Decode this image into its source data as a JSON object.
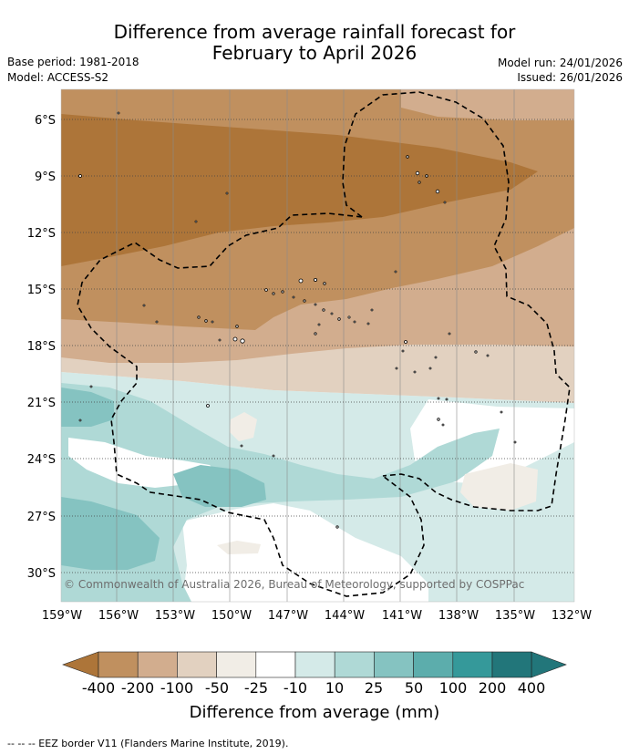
{
  "title": {
    "line1": "Difference from average rainfall forecast for",
    "line2": "February to April 2026"
  },
  "meta": {
    "base_period": "Base period: 1981-2018",
    "model": "Model: ACCESS-S2",
    "model_run": "Model run: 24/01/2026",
    "issued": "Issued: 26/01/2026"
  },
  "map": {
    "lat_labels": [
      "6°S",
      "9°S",
      "12°S",
      "15°S",
      "18°S",
      "21°S",
      "24°S",
      "27°S",
      "30°S"
    ],
    "lon_labels": [
      "159°W",
      "156°W",
      "153°W",
      "150°W",
      "147°W",
      "144°W",
      "141°W",
      "138°W",
      "135°W",
      "132°W"
    ],
    "copyright": "© Commonwealth of Australia 2026, Bureau of Meteorology, supported by COSPPac"
  },
  "colorbar": {
    "labels": [
      "-400",
      "-200",
      "-100",
      "-50",
      "-25",
      "-10",
      "10",
      "25",
      "50",
      "100",
      "200",
      "400"
    ],
    "colors": [
      "#ad7539",
      "#c0905f",
      "#d2ad8e",
      "#e2d1c0",
      "#f1ede6",
      "#ffffff",
      "#d4eae8",
      "#afd9d6",
      "#85c3c1",
      "#5cadac",
      "#35999a",
      "#22767a"
    ],
    "title": "Difference from average (mm)"
  },
  "footer": {
    "legend_text": "--  --  -- EEZ border V11 (Flanders Marine Institute, 2019)."
  }
}
